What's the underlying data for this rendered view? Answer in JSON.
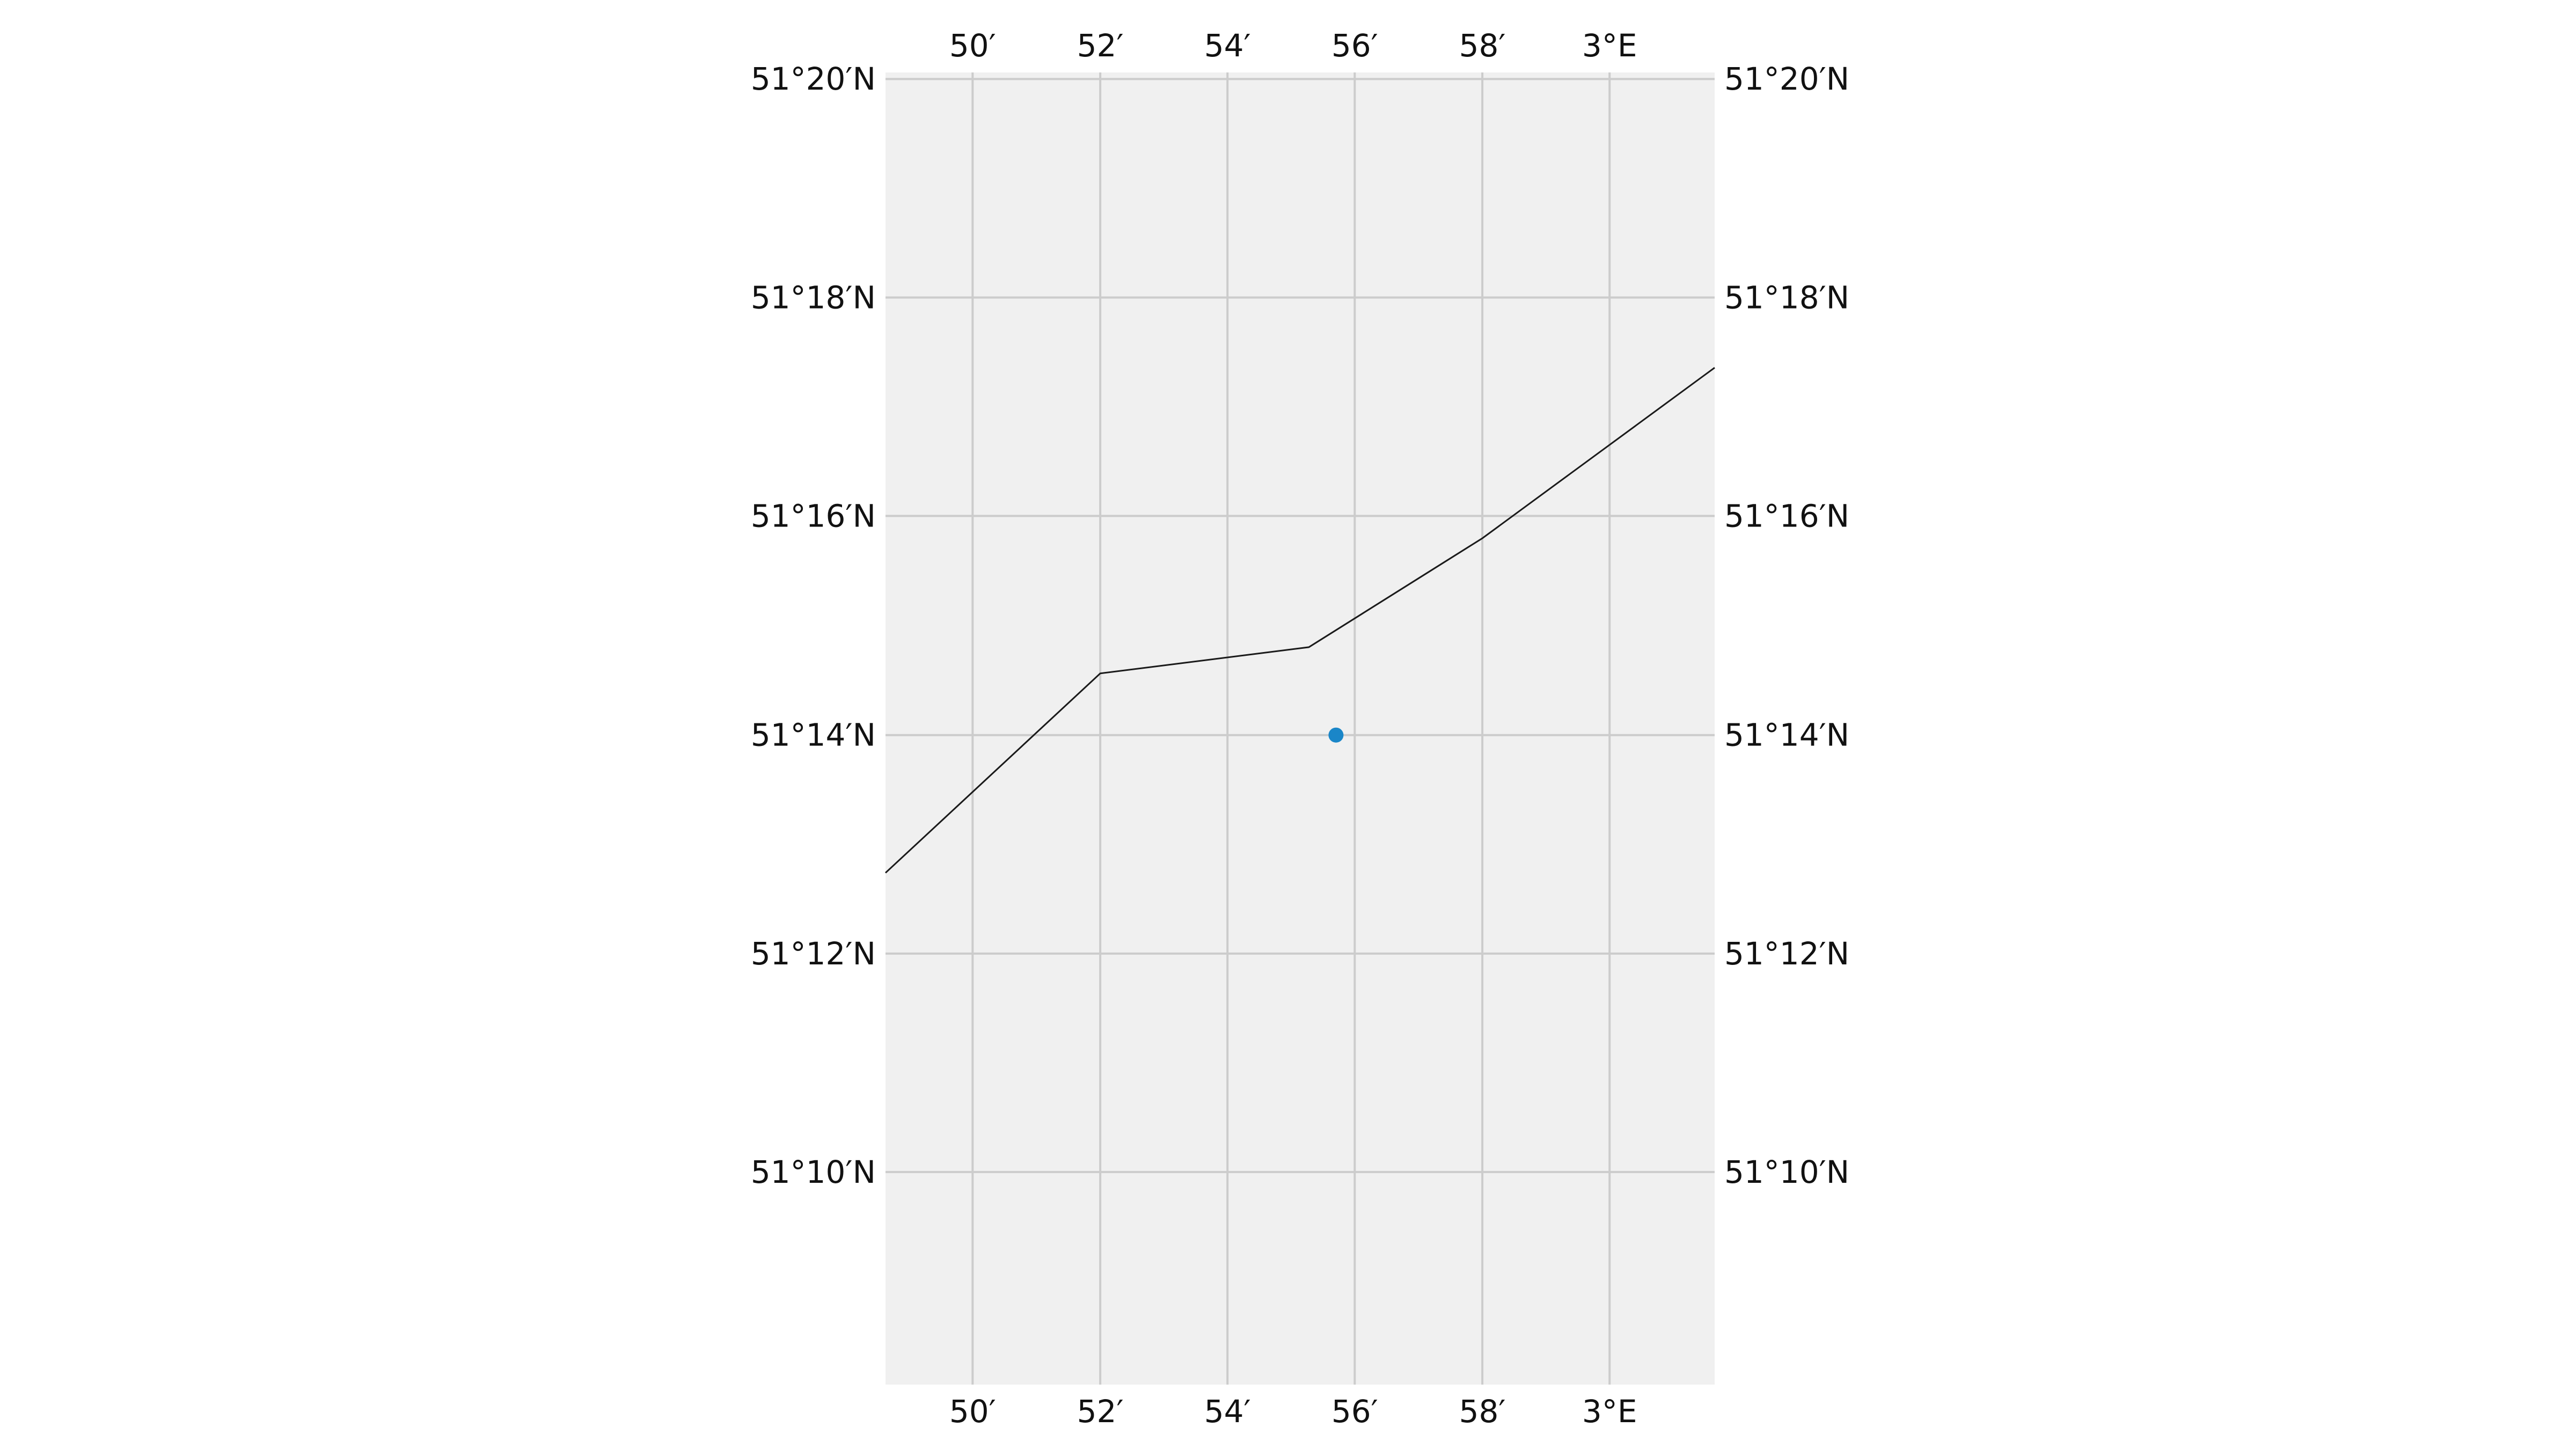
{
  "map": {
    "extent": {
      "lon_min": 2.8105,
      "lon_max": 3.0275,
      "lat_min": 51.1343,
      "lat_max": 51.3343
    },
    "background_color": "#f0f0f0",
    "grid_color": "#cccccc",
    "grid": true,
    "top_ticks": [
      {
        "value": 2.8333,
        "label": "50′"
      },
      {
        "value": 2.8667,
        "label": "52′"
      },
      {
        "value": 2.9,
        "label": "54′"
      },
      {
        "value": 2.9333,
        "label": "56′"
      },
      {
        "value": 2.9667,
        "label": "58′"
      },
      {
        "value": 3.0,
        "label": "3°E"
      }
    ],
    "bottom_ticks": [
      {
        "value": 2.8333,
        "label": "50′"
      },
      {
        "value": 2.8667,
        "label": "52′"
      },
      {
        "value": 2.9,
        "label": "54′"
      },
      {
        "value": 2.9333,
        "label": "56′"
      },
      {
        "value": 2.9667,
        "label": "58′"
      },
      {
        "value": 3.0,
        "label": "3°E"
      }
    ],
    "left_ticks": [
      {
        "value": 51.3333,
        "label": "51°20′N"
      },
      {
        "value": 51.3,
        "label": "51°18′N"
      },
      {
        "value": 51.2667,
        "label": "51°16′N"
      },
      {
        "value": 51.2333,
        "label": "51°14′N"
      },
      {
        "value": 51.2,
        "label": "51°12′N"
      },
      {
        "value": 51.1667,
        "label": "51°10′N"
      }
    ],
    "right_ticks": [
      {
        "value": 51.3333,
        "label": "51°20′N"
      },
      {
        "value": 51.3,
        "label": "51°18′N"
      },
      {
        "value": 51.2667,
        "label": "51°16′N"
      },
      {
        "value": 51.2333,
        "label": "51°14′N"
      },
      {
        "value": 51.2,
        "label": "51°12′N"
      },
      {
        "value": 51.1667,
        "label": "51°10′N"
      }
    ],
    "coastline": {
      "color": "#1a1a1a",
      "points": [
        {
          "lon": 2.8105,
          "lat": 51.2123
        },
        {
          "lon": 2.8667,
          "lat": 51.2427
        },
        {
          "lon": 2.9213,
          "lat": 51.2467
        },
        {
          "lon": 2.9667,
          "lat": 51.2633
        },
        {
          "lon": 3.0275,
          "lat": 51.2893
        }
      ]
    },
    "marker": {
      "lon": 2.9284,
      "lat": 51.2333,
      "color": "#1a86c8"
    }
  }
}
